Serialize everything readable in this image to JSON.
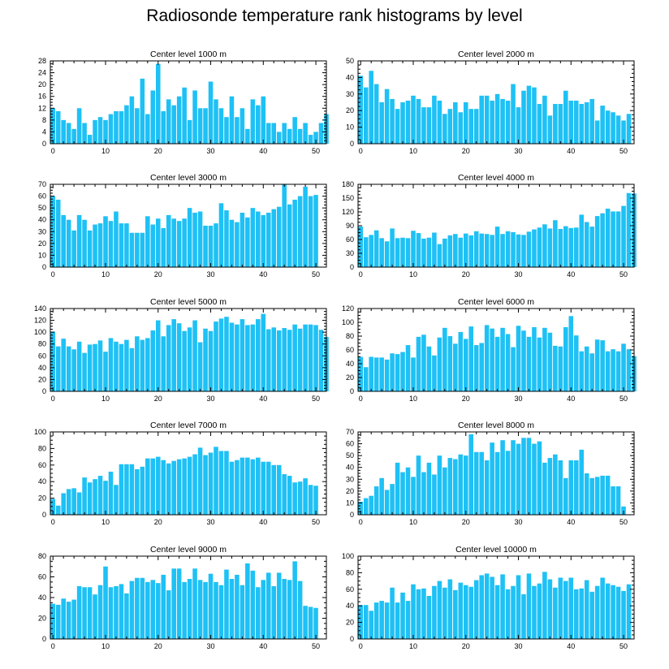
{
  "title": "Radiosonde temperature rank histograms by level",
  "colors": {
    "bar": "#1ec1f5",
    "axis": "#000000",
    "background": "#ffffff"
  },
  "chart_data": [
    {
      "type": "bar",
      "title": "Center level 1000 m",
      "xlim": [
        -0.5,
        52
      ],
      "ylim": [
        0,
        28
      ],
      "xticks": [
        0,
        10,
        20,
        30,
        40,
        50
      ],
      "yticks": [
        0,
        4,
        8,
        12,
        16,
        20,
        24,
        28
      ],
      "values": [
        12,
        11,
        8,
        7,
        5,
        12,
        7,
        3,
        8,
        9,
        8,
        10,
        11,
        11,
        13,
        16,
        12,
        22,
        10,
        18,
        27,
        11,
        15,
        13,
        16,
        19,
        8,
        18,
        12,
        12,
        21,
        15,
        12,
        9,
        16,
        9,
        12,
        5,
        15,
        13,
        16,
        7,
        7,
        4,
        7,
        5,
        9,
        5,
        7,
        3,
        4,
        7,
        10
      ]
    },
    {
      "type": "bar",
      "title": "Center level 2000 m",
      "xlim": [
        -0.5,
        52
      ],
      "ylim": [
        0,
        50
      ],
      "xticks": [
        0,
        10,
        20,
        30,
        40,
        50
      ],
      "yticks": [
        0,
        10,
        20,
        30,
        40,
        50
      ],
      "values": [
        41,
        34,
        44,
        36,
        25,
        33,
        27,
        21,
        25,
        26,
        29,
        27,
        22,
        22,
        29,
        26,
        18,
        21,
        25,
        19,
        25,
        21,
        21,
        29,
        29,
        26,
        30,
        27,
        26,
        36,
        22,
        32,
        35,
        34,
        24,
        29,
        17,
        24,
        24,
        32,
        26,
        26,
        24,
        25,
        27,
        14,
        23,
        20,
        19,
        17,
        14,
        18
      ]
    },
    {
      "type": "bar",
      "title": "Center level 3000 m",
      "xlim": [
        -0.5,
        52
      ],
      "ylim": [
        0,
        70
      ],
      "xticks": [
        0,
        10,
        20,
        30,
        40,
        50
      ],
      "yticks": [
        0,
        10,
        20,
        30,
        40,
        50,
        60,
        70
      ],
      "values": [
        60,
        57,
        44,
        40,
        31,
        44,
        40,
        31,
        36,
        37,
        43,
        39,
        47,
        37,
        37,
        29,
        29,
        29,
        43,
        36,
        41,
        33,
        44,
        41,
        39,
        41,
        50,
        46,
        47,
        35,
        35,
        37,
        54,
        48,
        40,
        38,
        46,
        42,
        50,
        47,
        44,
        46,
        49,
        51,
        70,
        53,
        57,
        60,
        68,
        60,
        61
      ]
    },
    {
      "type": "bar",
      "title": "Center level 4000 m",
      "xlim": [
        -0.5,
        52
      ],
      "ylim": [
        0,
        180
      ],
      "xticks": [
        0,
        10,
        20,
        30,
        40,
        50
      ],
      "yticks": [
        0,
        30,
        60,
        90,
        120,
        150,
        180
      ],
      "values": [
        88,
        65,
        70,
        80,
        63,
        56,
        84,
        63,
        64,
        63,
        79,
        74,
        62,
        64,
        75,
        50,
        62,
        69,
        72,
        64,
        73,
        69,
        78,
        73,
        72,
        70,
        88,
        72,
        78,
        76,
        71,
        70,
        77,
        82,
        86,
        93,
        84,
        102,
        83,
        89,
        85,
        86,
        114,
        98,
        88,
        111,
        117,
        127,
        121,
        121,
        133,
        161,
        160
      ]
    },
    {
      "type": "bar",
      "title": "Center level 5000 m",
      "xlim": [
        -0.5,
        52
      ],
      "ylim": [
        0,
        140
      ],
      "xticks": [
        0,
        10,
        20,
        30,
        40,
        50
      ],
      "yticks": [
        0,
        20,
        40,
        60,
        80,
        100,
        120,
        140
      ],
      "values": [
        101,
        76,
        89,
        76,
        71,
        84,
        65,
        79,
        80,
        86,
        67,
        90,
        84,
        80,
        87,
        73,
        93,
        87,
        90,
        103,
        120,
        93,
        112,
        122,
        115,
        102,
        108,
        120,
        83,
        106,
        102,
        118,
        123,
        126,
        116,
        113,
        122,
        112,
        113,
        122,
        131,
        105,
        108,
        103,
        107,
        104,
        113,
        106,
        113,
        113,
        112,
        104,
        92
      ]
    },
    {
      "type": "bar",
      "title": "Center level 6000 m",
      "xlim": [
        -0.5,
        52
      ],
      "ylim": [
        0,
        120
      ],
      "xticks": [
        0,
        10,
        20,
        30,
        40,
        50
      ],
      "yticks": [
        0,
        20,
        40,
        60,
        80,
        100,
        120
      ],
      "values": [
        50,
        35,
        50,
        49,
        49,
        46,
        55,
        54,
        57,
        67,
        49,
        79,
        82,
        65,
        52,
        78,
        92,
        80,
        69,
        86,
        76,
        94,
        67,
        70,
        96,
        91,
        79,
        92,
        83,
        64,
        95,
        88,
        79,
        93,
        78,
        92,
        85,
        66,
        65,
        93,
        109,
        81,
        58,
        65,
        55,
        75,
        74,
        58,
        61,
        58,
        69,
        61,
        51
      ]
    },
    {
      "type": "bar",
      "title": "Center level 7000 m",
      "xlim": [
        -0.5,
        52
      ],
      "ylim": [
        0,
        100
      ],
      "xticks": [
        0,
        10,
        20,
        30,
        40,
        50
      ],
      "yticks": [
        0,
        20,
        40,
        60,
        80,
        100
      ],
      "values": [
        19,
        11,
        26,
        31,
        32,
        27,
        45,
        39,
        43,
        47,
        41,
        52,
        36,
        61,
        61,
        61,
        55,
        58,
        68,
        68,
        70,
        66,
        62,
        65,
        67,
        68,
        70,
        73,
        81,
        72,
        75,
        82,
        77,
        77,
        64,
        66,
        69,
        69,
        67,
        69,
        64,
        64,
        60,
        60,
        49,
        47,
        39,
        40,
        44,
        36,
        35
      ]
    },
    {
      "type": "bar",
      "title": "Center level 8000 m",
      "xlim": [
        -0.5,
        52
      ],
      "ylim": [
        0,
        70
      ],
      "xticks": [
        0,
        10,
        20,
        30,
        40,
        50
      ],
      "yticks": [
        0,
        10,
        20,
        30,
        40,
        50,
        60,
        70
      ],
      "values": [
        11,
        14,
        16,
        24,
        31,
        21,
        26,
        44,
        36,
        40,
        32,
        50,
        36,
        44,
        34,
        50,
        40,
        48,
        47,
        51,
        50,
        68,
        53,
        53,
        46,
        61,
        53,
        63,
        54,
        63,
        60,
        65,
        65,
        60,
        62,
        44,
        48,
        51,
        46,
        31,
        46,
        46,
        55,
        35,
        31,
        32,
        33,
        33,
        24,
        24,
        7
      ]
    },
    {
      "type": "bar",
      "title": "Center level 9000 m",
      "xlim": [
        -0.5,
        52
      ],
      "ylim": [
        0,
        80
      ],
      "xticks": [
        0,
        10,
        20,
        30,
        40,
        50
      ],
      "yticks": [
        0,
        20,
        40,
        60,
        80
      ],
      "values": [
        34,
        33,
        39,
        36,
        38,
        51,
        50,
        50,
        43,
        52,
        70,
        50,
        51,
        53,
        44,
        56,
        59,
        59,
        55,
        57,
        54,
        62,
        47,
        68,
        68,
        55,
        58,
        68,
        57,
        55,
        63,
        55,
        52,
        67,
        58,
        62,
        52,
        73,
        66,
        50,
        57,
        64,
        51,
        64,
        58,
        57,
        75,
        56,
        32,
        31,
        30
      ]
    },
    {
      "type": "bar",
      "title": "Center level 10000 m",
      "xlim": [
        -0.5,
        52
      ],
      "ylim": [
        0,
        100
      ],
      "xticks": [
        0,
        10,
        20,
        30,
        40,
        50
      ],
      "yticks": [
        0,
        20,
        40,
        60,
        80,
        100
      ],
      "values": [
        41,
        41,
        34,
        44,
        46,
        44,
        62,
        44,
        56,
        46,
        66,
        60,
        61,
        52,
        64,
        70,
        62,
        72,
        59,
        68,
        65,
        63,
        71,
        77,
        79,
        75,
        65,
        78,
        60,
        64,
        77,
        54,
        79,
        64,
        67,
        81,
        72,
        62,
        74,
        70,
        74,
        60,
        61,
        71,
        57,
        64,
        74,
        67,
        65,
        63,
        58,
        66
      ]
    }
  ]
}
